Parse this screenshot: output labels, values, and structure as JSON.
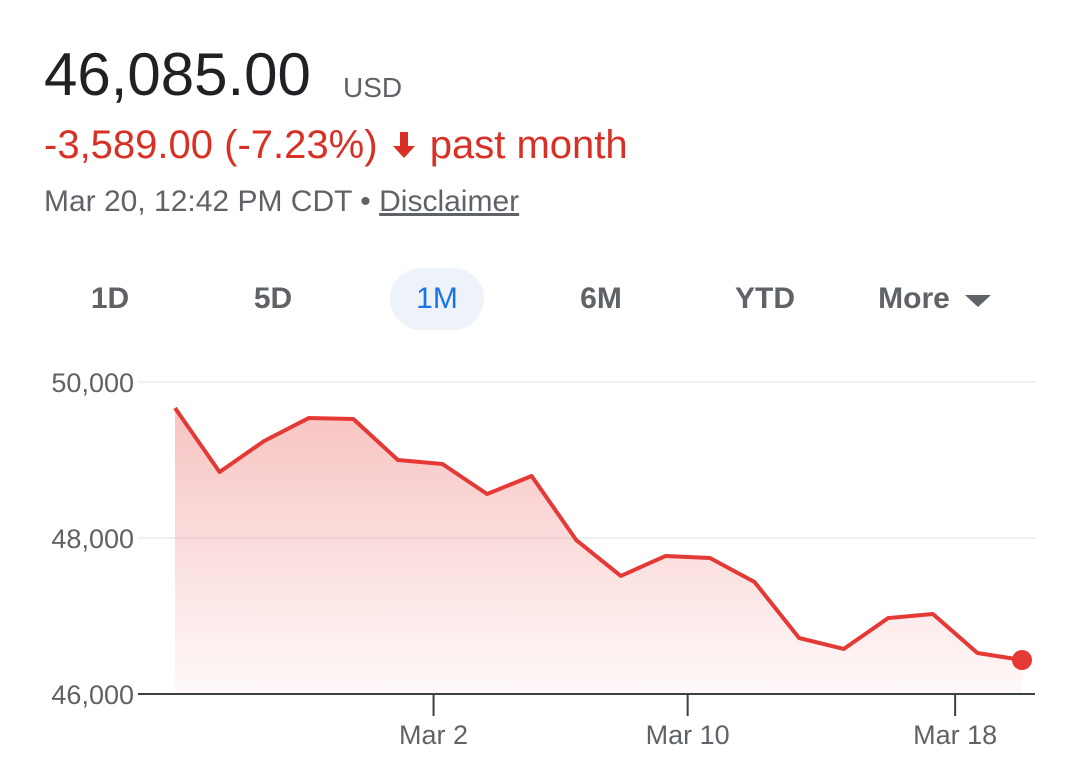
{
  "header": {
    "price": "46,085.00",
    "currency": "USD",
    "change": "-3,589.00 (-7.23%)",
    "period": "past month",
    "timestamp": "Mar 20, 12:42 PM CDT",
    "separator": "•",
    "disclaimer": "Disclaimer"
  },
  "tabs": [
    {
      "label": "1D"
    },
    {
      "label": "5D"
    },
    {
      "label": "1M",
      "selected": true
    },
    {
      "label": "6M"
    },
    {
      "label": "YTD"
    },
    {
      "label": "More"
    }
  ],
  "chart_data": {
    "type": "line",
    "x": [
      0,
      1,
      2,
      3,
      4,
      5,
      6,
      7,
      8,
      9,
      10,
      11,
      12,
      13,
      14,
      15,
      16,
      17,
      18,
      19
    ],
    "series": [
      {
        "color": "#e53935",
        "values": [
          49667,
          48846,
          49244,
          49538,
          49526,
          49000,
          48949,
          48564,
          48795,
          47974,
          47513,
          47769,
          47744,
          47436,
          46718,
          46577,
          46974,
          47026,
          46526,
          46436
        ]
      }
    ],
    "xlim": [
      0,
      19
    ],
    "xticks": [
      {
        "value": 5.8,
        "label": "Mar 2"
      },
      {
        "value": 11.5,
        "label": "Mar 10"
      },
      {
        "value": 17.5,
        "label": "Mar 18"
      }
    ],
    "ylim": [
      46000,
      50000
    ],
    "yticks": [
      {
        "value": 46000,
        "label": "46,000"
      },
      {
        "value": 48000,
        "label": "48,000"
      },
      {
        "value": 50000,
        "label": "50,000"
      }
    ],
    "grid": true
  }
}
